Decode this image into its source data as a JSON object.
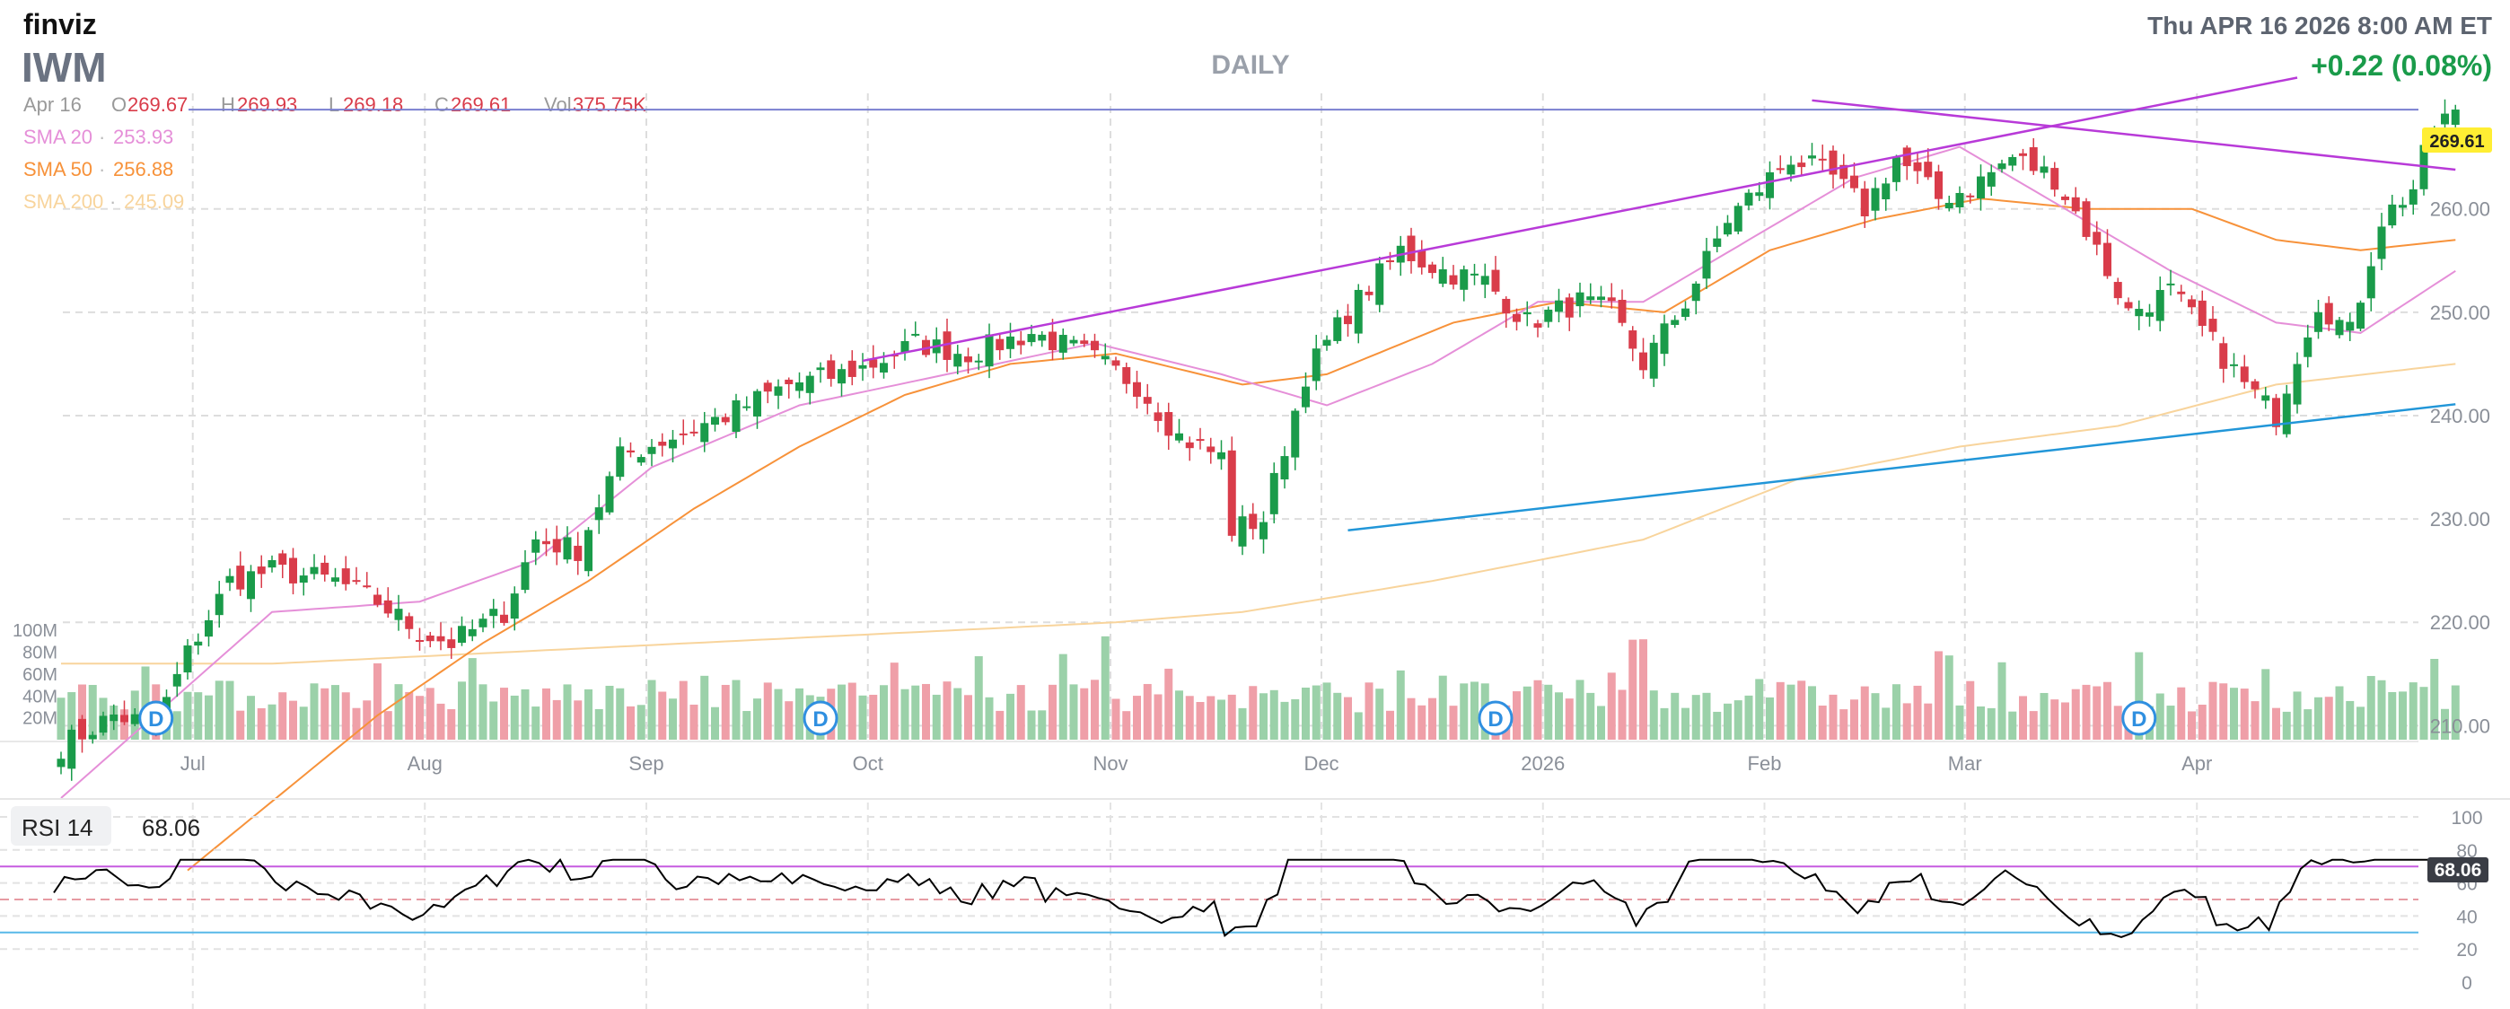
{
  "header": {
    "logo": "finviz",
    "symbol": "IWM",
    "timeframe": "DAILY",
    "datetime": "Thu APR 16 2026 8:00 AM ET",
    "change": "+0.22 (0.08%)"
  },
  "ohlc": {
    "date": "Apr 16",
    "open_label": "O",
    "open": "269.67",
    "high_label": "H",
    "high": "269.93",
    "low_label": "L",
    "low": "269.18",
    "close_label": "C",
    "close": "269.61",
    "vol_label": "Vol",
    "vol": "375.75K"
  },
  "sma": [
    {
      "label": "SMA 20",
      "value": "253.93",
      "color": "#e58fd8"
    },
    {
      "label": "SMA 50",
      "value": "256.88",
      "color": "#f7923a"
    },
    {
      "label": "SMA 200",
      "value": "245.09",
      "color": "#f8d49c"
    }
  ],
  "colors": {
    "up": "#1a9b4a",
    "down": "#d93c4a",
    "vol_up": "#9bd1a9",
    "vol_down": "#ef9fa8",
    "rsi_line": "#000000",
    "trend_purple": "#b83ad8",
    "trend_blue": "#2196d8",
    "price_tag": "#ffee33"
  },
  "rsi": {
    "label": "RSI 14",
    "value": "68.06",
    "last": 68.06,
    "overbought": 70,
    "oversold": 30,
    "mid": 50
  },
  "chart_data": {
    "type": "candlestick",
    "title": "IWM Daily",
    "months": [
      {
        "label": "Jul",
        "index": 13
      },
      {
        "label": "Aug",
        "index": 35
      },
      {
        "label": "Sep",
        "index": 56
      },
      {
        "label": "Oct",
        "index": 77
      },
      {
        "label": "Nov",
        "index": 100
      },
      {
        "label": "Dec",
        "index": 120
      },
      {
        "label": "2026",
        "index": 141
      },
      {
        "label": "Feb",
        "index": 162
      },
      {
        "label": "Mar",
        "index": 181
      },
      {
        "label": "Apr",
        "index": 203
      }
    ],
    "y_ticks": [
      210,
      220,
      230,
      240,
      250,
      260
    ],
    "y_tick_labels": [
      "210.00",
      "220.00",
      "230.00",
      "240.00",
      "250.00",
      "260.00"
    ],
    "ylim": [
      201,
      275
    ],
    "volume_ticks": [
      "100M",
      "80M",
      "60M",
      "40M",
      "20M"
    ],
    "rsi_ticks": [
      0,
      20,
      40,
      60,
      80,
      100
    ],
    "last_price": 269.61,
    "last_price_label": "269.61",
    "price_ref_line": 269.6,
    "dividends": [
      {
        "label": "D",
        "index": 9
      },
      {
        "label": "D",
        "index": 72
      },
      {
        "label": "D",
        "index": 136
      },
      {
        "label": "D",
        "index": 197
      }
    ],
    "anchors": [
      [
        0,
        208
      ],
      [
        5,
        211
      ],
      [
        9,
        210
      ],
      [
        12,
        217
      ],
      [
        16,
        224
      ],
      [
        20,
        225
      ],
      [
        26,
        224
      ],
      [
        30,
        222
      ],
      [
        34,
        219
      ],
      [
        37,
        218
      ],
      [
        42,
        221
      ],
      [
        45,
        228
      ],
      [
        49,
        227
      ],
      [
        53,
        236
      ],
      [
        58,
        238
      ],
      [
        63,
        240
      ],
      [
        69,
        243
      ],
      [
        74,
        244
      ],
      [
        77,
        245
      ],
      [
        81,
        247
      ],
      [
        86,
        246
      ],
      [
        92,
        248
      ],
      [
        97,
        246
      ],
      [
        102,
        243
      ],
      [
        106,
        238
      ],
      [
        110,
        236
      ],
      [
        111,
        229
      ],
      [
        114,
        230
      ],
      [
        118,
        244
      ],
      [
        122,
        250
      ],
      [
        127,
        256
      ],
      [
        131,
        254
      ],
      [
        135,
        253
      ],
      [
        139,
        249
      ],
      [
        144,
        251
      ],
      [
        147,
        250
      ],
      [
        150,
        245
      ],
      [
        154,
        251
      ],
      [
        158,
        259
      ],
      [
        164,
        265
      ],
      [
        168,
        263
      ],
      [
        171,
        260
      ],
      [
        174,
        265
      ],
      [
        178,
        261
      ],
      [
        181,
        262
      ],
      [
        185,
        265
      ],
      [
        189,
        263
      ],
      [
        192,
        258
      ],
      [
        196,
        250
      ],
      [
        200,
        252
      ],
      [
        204,
        247
      ],
      [
        207,
        243
      ],
      [
        210,
        240
      ],
      [
        212,
        246
      ],
      [
        214,
        251
      ],
      [
        217,
        248
      ],
      [
        220,
        259
      ],
      [
        223,
        262
      ],
      [
        225,
        268
      ],
      [
        227,
        269.6
      ]
    ],
    "sma20_anchors": [
      [
        0,
        203
      ],
      [
        20,
        221
      ],
      [
        34,
        222
      ],
      [
        45,
        226
      ],
      [
        56,
        235
      ],
      [
        70,
        241
      ],
      [
        84,
        244
      ],
      [
        98,
        247
      ],
      [
        110,
        244
      ],
      [
        120,
        241
      ],
      [
        130,
        245
      ],
      [
        140,
        251
      ],
      [
        150,
        251
      ],
      [
        160,
        257
      ],
      [
        170,
        263
      ],
      [
        180,
        266
      ],
      [
        190,
        260
      ],
      [
        200,
        254
      ],
      [
        210,
        249
      ],
      [
        218,
        248
      ],
      [
        227,
        254
      ]
    ],
    "sma50_anchors": [
      [
        12,
        196
      ],
      [
        30,
        211
      ],
      [
        40,
        218
      ],
      [
        50,
        224
      ],
      [
        60,
        231
      ],
      [
        70,
        237
      ],
      [
        80,
        242
      ],
      [
        90,
        245
      ],
      [
        100,
        246
      ],
      [
        112,
        243
      ],
      [
        120,
        244
      ],
      [
        132,
        249
      ],
      [
        142,
        251
      ],
      [
        152,
        250
      ],
      [
        162,
        256
      ],
      [
        172,
        259
      ],
      [
        182,
        261
      ],
      [
        192,
        260
      ],
      [
        202,
        260
      ],
      [
        210,
        257
      ],
      [
        218,
        256
      ],
      [
        227,
        257
      ]
    ],
    "sma200_anchors": [
      [
        0,
        216
      ],
      [
        20,
        216
      ],
      [
        40,
        217
      ],
      [
        60,
        218
      ],
      [
        80,
        219
      ],
      [
        100,
        220
      ],
      [
        112,
        221
      ],
      [
        130,
        224
      ],
      [
        150,
        228
      ],
      [
        165,
        234
      ],
      [
        180,
        237
      ],
      [
        195,
        239
      ],
      [
        210,
        243
      ],
      [
        227,
        245
      ]
    ],
    "trendlines": [
      {
        "name": "upper-channel",
        "color": "#b83ad8",
        "from": [
          76,
          245.3
        ],
        "to": [
          212,
          272.7
        ]
      },
      {
        "name": "descending-resistance",
        "color": "#b83ad8",
        "from": [
          166,
          270.5
        ],
        "to": [
          227,
          263.8
        ]
      },
      {
        "name": "ascending-support",
        "color": "#2196d8",
        "from": [
          122,
          228.9
        ],
        "to": [
          227,
          241.1
        ]
      }
    ]
  }
}
